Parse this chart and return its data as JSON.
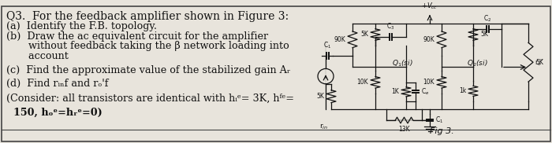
{
  "bg_color": "#e8e4dc",
  "text_color": "#111111",
  "border_color": "#444444",
  "left_lines": [
    [
      "Q3.  For the feedback amplifier shown in Figure 3:",
      0.958,
      10.0,
      "normal"
    ],
    [
      "(a)  Identify the F.B. topology.",
      0.882,
      9.2,
      "normal"
    ],
    [
      "(b)  Draw the ac equivalent circuit for the amplifier",
      0.81,
      9.2,
      "normal"
    ],
    [
      "       without feedback taking the β network loading into",
      0.74,
      9.2,
      "normal"
    ],
    [
      "       account",
      0.668,
      9.2,
      "normal"
    ],
    [
      "(c)  Find the approximate value of the stabilized gain Aᵣ",
      0.565,
      9.2,
      "normal"
    ],
    [
      "(d)  Find rᵢₙf and rₒ'f",
      0.465,
      9.2,
      "normal"
    ],
    [
      "(Consider: all transistors are identical with hᵢᵉ= 3K, hᶠᵉ=",
      0.36,
      9.2,
      "normal"
    ],
    [
      "  150, hₒᵉ=hᵣᵉ=0)",
      0.255,
      9.2,
      "bold"
    ]
  ],
  "fig_label": "Fig 3."
}
